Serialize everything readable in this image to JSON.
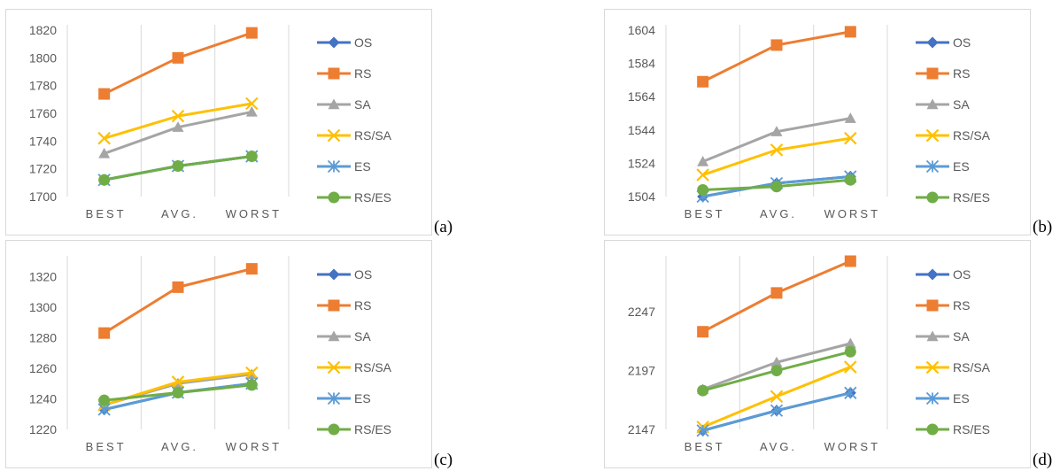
{
  "colors": {
    "OS": "#4472c4",
    "RS": "#ed7d31",
    "SA": "#a5a5a5",
    "RS/SA": "#ffc000",
    "ES": "#5b9bd5",
    "RS/ES": "#70ad47",
    "grid": "#d9d9d9",
    "text": "#595959"
  },
  "legend_markers": {
    "OS": "diamond",
    "RS": "square",
    "SA": "triangle",
    "RS/SA": "x",
    "ES": "asterisk",
    "RS/ES": "circle"
  },
  "chart_data": [
    {
      "label": "(a)",
      "type": "line",
      "categories": [
        "BEST",
        "AVG.",
        "WORST"
      ],
      "yticks": [
        1700,
        1720,
        1740,
        1760,
        1780,
        1800,
        1820
      ],
      "ylim": [
        1700,
        1820
      ],
      "grid": "vertical",
      "legend": "right",
      "series": [
        {
          "name": "OS",
          "values": [
            1712,
            1722,
            1729
          ]
        },
        {
          "name": "RS",
          "values": [
            1774,
            1800,
            1818
          ]
        },
        {
          "name": "SA",
          "values": [
            1731,
            1750,
            1761
          ]
        },
        {
          "name": "RS/SA",
          "values": [
            1742,
            1758,
            1767
          ]
        },
        {
          "name": "ES",
          "values": [
            1712,
            1722,
            1729
          ]
        },
        {
          "name": "RS/ES",
          "values": [
            1712,
            1722,
            1729
          ]
        }
      ]
    },
    {
      "label": "(b)",
      "type": "line",
      "categories": [
        "BEST",
        "AVG.",
        "WORST"
      ],
      "yticks": [
        1504,
        1524,
        1544,
        1564,
        1584,
        1604
      ],
      "ylim": [
        1504,
        1604
      ],
      "grid": "vertical",
      "legend": "right",
      "series": [
        {
          "name": "OS",
          "values": [
            1504,
            1512,
            1516
          ]
        },
        {
          "name": "RS",
          "values": [
            1573,
            1595,
            1603
          ]
        },
        {
          "name": "SA",
          "values": [
            1525,
            1543,
            1551
          ]
        },
        {
          "name": "RS/SA",
          "values": [
            1517,
            1532,
            1539
          ]
        },
        {
          "name": "ES",
          "values": [
            1504,
            1512,
            1516
          ]
        },
        {
          "name": "RS/ES",
          "values": [
            1508,
            1510,
            1514
          ]
        }
      ]
    },
    {
      "label": "(c)",
      "type": "line",
      "categories": [
        "BEST",
        "AVG.",
        "WORST"
      ],
      "yticks": [
        1220,
        1240,
        1260,
        1280,
        1300,
        1320
      ],
      "ylim": [
        1220,
        1330
      ],
      "grid": "vertical",
      "legend": "right",
      "series": [
        {
          "name": "OS",
          "values": [
            1233,
            1244,
            1250
          ]
        },
        {
          "name": "RS",
          "values": [
            1283,
            1313,
            1325
          ]
        },
        {
          "name": "SA",
          "values": [
            1236,
            1250,
            1256
          ]
        },
        {
          "name": "RS/SA",
          "values": [
            1236,
            1251,
            1257
          ]
        },
        {
          "name": "ES",
          "values": [
            1233,
            1244,
            1250
          ]
        },
        {
          "name": "RS/ES",
          "values": [
            1239,
            1244,
            1249
          ]
        }
      ]
    },
    {
      "label": "(d)",
      "type": "line",
      "categories": [
        "BEST",
        "AVG.",
        "WORST"
      ],
      "yticks": [
        2147,
        2197,
        2247
      ],
      "ylim": [
        2147,
        2290
      ],
      "grid": "vertical",
      "legend": "right",
      "series": [
        {
          "name": "OS",
          "values": [
            2146,
            2163,
            2178
          ]
        },
        {
          "name": "RS",
          "values": [
            2230,
            2263,
            2290
          ]
        },
        {
          "name": "SA",
          "values": [
            2181,
            2204,
            2220
          ]
        },
        {
          "name": "RS/SA",
          "values": [
            2149,
            2175,
            2200
          ]
        },
        {
          "name": "ES",
          "values": [
            2146,
            2163,
            2178
          ]
        },
        {
          "name": "RS/ES",
          "values": [
            2180,
            2197,
            2213
          ]
        }
      ]
    }
  ]
}
